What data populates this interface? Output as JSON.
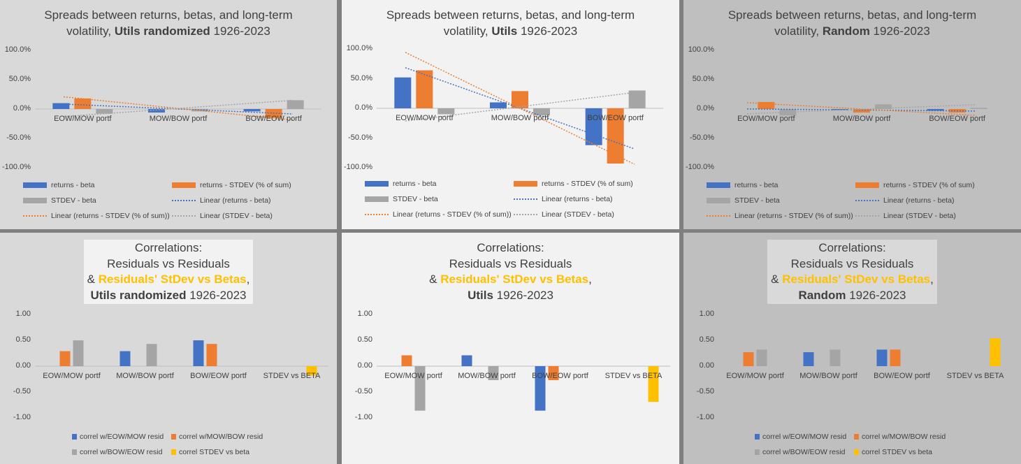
{
  "colors": {
    "blue": "#4472c4",
    "orange": "#ed7d31",
    "gray": "#a5a5a5",
    "yellow": "#ffc000",
    "axis": "#bfbfbf"
  },
  "top_titles": [
    {
      "line1": "Spreads between returns, betas, and long-term",
      "pre": "volatility, ",
      "bold": "Utils randomized",
      "post": " 1926-2023"
    },
    {
      "line1": "Spreads between returns, betas, and long-term",
      "pre": "volatility, ",
      "bold": "Utils",
      "post": " 1926-2023"
    },
    {
      "line1": "Spreads between returns, betas, and long-term",
      "pre": "volatility, ",
      "bold": "Random",
      "post": " 1926-2023"
    }
  ],
  "bottom_titles": [
    {
      "l1": "Correlations:",
      "l2": "Residuals vs Residuals",
      "amp": "& ",
      "hl": "Residuals' StDev vs Betas",
      "comma": ",",
      "bold": "Utils randomized",
      "post": " 1926-2023"
    },
    {
      "l1": "Correlations:",
      "l2": "Residuals vs Residuals",
      "amp": "& ",
      "hl": "Residuals' StDev vs Betas",
      "comma": ",",
      "bold": "Utils",
      "post": " 1926-2023"
    },
    {
      "l1": "Correlations:",
      "l2": "Residuals vs Residuals",
      "amp": "& ",
      "hl": "Residuals' StDev vs Betas",
      "comma": ",",
      "bold": "Random",
      "post": " 1926-2023"
    }
  ],
  "top_legend": [
    "returns - beta",
    "returns - STDEV (% of sum)",
    "STDEV - beta",
    "Linear (returns - beta)",
    "Linear (returns - STDEV (% of sum))",
    "Linear (STDEV - beta)"
  ],
  "bottom_legend": [
    "correl w/EOW/MOW resid",
    "correl w/MOW/BOW resid",
    "correl w/BOW/EOW resid",
    "correl STDEV vs beta"
  ],
  "chart_data": [
    {
      "type": "bar",
      "title": "Spreads between returns, betas, and long-term volatility, Utils randomized 1926-2023",
      "categories": [
        "EOW/MOW portf",
        "MOW/BOW portf",
        "BOW/EOW portf"
      ],
      "ylim": [
        -100,
        100
      ],
      "yticks": [
        "100.0%",
        "50.0%",
        "0.0%",
        "-50.0%",
        "-100.0%"
      ],
      "series": [
        {
          "name": "returns - beta",
          "values": [
            10,
            -6,
            -4
          ]
        },
        {
          "name": "returns - STDEV (% of sum)",
          "values": [
            18,
            0,
            -15
          ]
        },
        {
          "name": "STDEV - beta",
          "values": [
            -8,
            -4,
            15
          ]
        }
      ],
      "trendlines": [
        "Linear (returns - beta)",
        "Linear (returns - STDEV (% of sum))",
        "Linear (STDEV - beta)"
      ]
    },
    {
      "type": "bar",
      "title": "Spreads between returns, betas, and long-term volatility, Utils 1926-2023",
      "categories": [
        "EOW/MOW portf",
        "MOW/BOW portf",
        "BOW/EOW portf"
      ],
      "ylim": [
        -100,
        100
      ],
      "yticks": [
        "100.0%",
        "50.0%",
        "0.0%",
        "-50.0%",
        "-100.0%"
      ],
      "series": [
        {
          "name": "returns - beta",
          "values": [
            52,
            10,
            -62
          ]
        },
        {
          "name": "returns - STDEV (% of sum)",
          "values": [
            64,
            29,
            -93
          ]
        },
        {
          "name": "STDEV - beta",
          "values": [
            -10,
            -12,
            30
          ]
        }
      ],
      "trendlines": [
        "Linear (returns - beta)",
        "Linear (returns - STDEV (% of sum))",
        "Linear (STDEV - beta)"
      ]
    },
    {
      "type": "bar",
      "title": "Spreads between returns, betas, and long-term volatility, Random 1926-2023",
      "categories": [
        "EOW/MOW portf",
        "MOW/BOW portf",
        "BOW/EOW portf"
      ],
      "ylim": [
        -100,
        100
      ],
      "yticks": [
        "100.0%",
        "50.0%",
        "0.0%",
        "-50.0%",
        "-100.0%"
      ],
      "series": [
        {
          "name": "returns - beta",
          "values": [
            0,
            -2,
            -3
          ]
        },
        {
          "name": "returns - STDEV (% of sum)",
          "values": [
            12,
            -6,
            -6
          ]
        },
        {
          "name": "STDEV - beta",
          "values": [
            -11,
            8,
            2
          ]
        }
      ],
      "trendlines": [
        "Linear (returns - beta)",
        "Linear (returns - STDEV (% of sum))",
        "Linear (STDEV - beta)"
      ]
    },
    {
      "type": "bar",
      "title": "Correlations: Residuals vs Residuals & Residuals' StDev vs Betas, Utils randomized 1926-2023",
      "categories": [
        "EOW/MOW portf",
        "MOW/BOW portf",
        "BOW/EOW portf",
        "STDEV vs BETA"
      ],
      "ylim": [
        -1,
        1
      ],
      "yticks": [
        "1.00",
        "0.50",
        "0.00",
        "-0.50",
        "-1.00"
      ],
      "series": [
        {
          "name": "correl w/EOW/MOW resid",
          "values": [
            0,
            0.29,
            0.5,
            0
          ]
        },
        {
          "name": "correl w/MOW/BOW resid",
          "values": [
            0.29,
            0,
            0.43,
            0
          ]
        },
        {
          "name": "correl w/BOW/EOW resid",
          "values": [
            0.5,
            0.43,
            0,
            0
          ]
        },
        {
          "name": "correl STDEV vs beta",
          "values": [
            0,
            0,
            0,
            -0.18
          ]
        }
      ]
    },
    {
      "type": "bar",
      "title": "Correlations: Residuals vs Residuals & Residuals' StDev vs Betas, Utils 1926-2023",
      "categories": [
        "EOW/MOW portf",
        "MOW/BOW portf",
        "BOW/EOW portf",
        "STDEV vs BETA"
      ],
      "ylim": [
        -1,
        1
      ],
      "yticks": [
        "1.00",
        "0.50",
        "0.00",
        "-0.50",
        "-1.00"
      ],
      "series": [
        {
          "name": "correl w/EOW/MOW resid",
          "values": [
            0,
            0.21,
            -0.86,
            0
          ]
        },
        {
          "name": "correl w/MOW/BOW resid",
          "values": [
            0.21,
            0,
            -0.27,
            0
          ]
        },
        {
          "name": "correl w/BOW/EOW resid",
          "values": [
            -0.86,
            -0.27,
            0,
            0
          ]
        },
        {
          "name": "correl STDEV vs beta",
          "values": [
            0,
            0,
            0,
            -0.69
          ]
        }
      ]
    },
    {
      "type": "bar",
      "title": "Correlations: Residuals vs Residuals & Residuals' StDev vs Betas, Random 1926-2023",
      "categories": [
        "EOW/MOW portf",
        "MOW/BOW portf",
        "BOW/EOW portf",
        "STDEV vs BETA"
      ],
      "ylim": [
        -1,
        1
      ],
      "yticks": [
        "1.00",
        "0.50",
        "0.00",
        "-0.50",
        "-1.00"
      ],
      "series": [
        {
          "name": "correl w/EOW/MOW resid",
          "values": [
            0,
            0.27,
            0.32,
            0
          ]
        },
        {
          "name": "correl w/MOW/BOW resid",
          "values": [
            0.27,
            0,
            0.32,
            0
          ]
        },
        {
          "name": "correl w/BOW/EOW resid",
          "values": [
            0.32,
            0.32,
            0,
            0
          ]
        },
        {
          "name": "correl STDEV vs beta",
          "values": [
            0,
            0,
            0,
            0.54
          ]
        }
      ]
    }
  ]
}
